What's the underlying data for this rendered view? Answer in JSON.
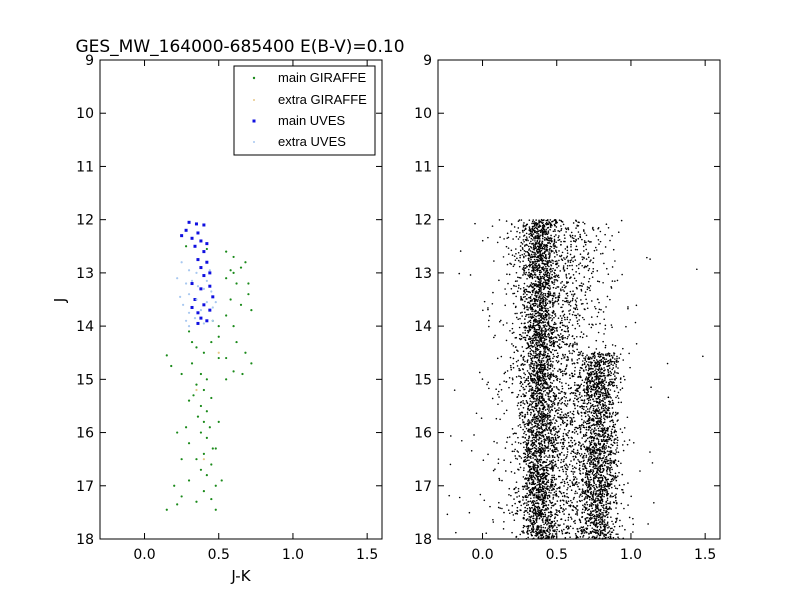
{
  "chart_data": [
    {
      "type": "scatter",
      "title": "GES_MW_164000-685400 E(B-V)=0.10",
      "xlabel": "J-K",
      "ylabel": "J",
      "xlim": [
        -0.3,
        1.6
      ],
      "ylim": [
        18,
        9
      ],
      "y_inverted": true,
      "x_ticks": [
        "0.0",
        "0.5",
        "1.0",
        "1.5"
      ],
      "y_ticks": [
        "9",
        "10",
        "11",
        "12",
        "13",
        "14",
        "15",
        "16",
        "17",
        "18"
      ],
      "legend_position": "top-right",
      "series": [
        {
          "name": "main GIRAFFE",
          "color": "#1a8a1a",
          "marker": "point",
          "points": [
            [
              0.28,
              12.5
            ],
            [
              0.42,
              12.55
            ],
            [
              0.55,
              12.6
            ],
            [
              0.6,
              12.7
            ],
            [
              0.68,
              12.8
            ],
            [
              0.6,
              13.0
            ],
            [
              0.55,
              13.1
            ],
            [
              0.62,
              13.2
            ],
            [
              0.7,
              13.4
            ],
            [
              0.58,
              13.5
            ],
            [
              0.65,
              13.6
            ],
            [
              0.72,
              13.7
            ],
            [
              0.55,
              13.8
            ],
            [
              0.6,
              14.0
            ],
            [
              0.5,
              14.2
            ],
            [
              0.62,
              14.3
            ],
            [
              0.68,
              14.5
            ],
            [
              0.55,
              14.6
            ],
            [
              0.72,
              14.7
            ],
            [
              0.6,
              14.85
            ],
            [
              0.66,
              14.9
            ],
            [
              0.15,
              14.55
            ],
            [
              0.18,
              14.75
            ],
            [
              0.5,
              14.6
            ],
            [
              0.45,
              14.3
            ],
            [
              0.3,
              14.1
            ],
            [
              0.35,
              14.4
            ],
            [
              0.4,
              14.5
            ],
            [
              0.32,
              14.7
            ],
            [
              0.38,
              14.9
            ],
            [
              0.42,
              15.0
            ],
            [
              0.35,
              15.1
            ],
            [
              0.4,
              15.2
            ],
            [
              0.33,
              15.3
            ],
            [
              0.45,
              15.35
            ],
            [
              0.38,
              15.5
            ],
            [
              0.42,
              15.6
            ],
            [
              0.36,
              15.7
            ],
            [
              0.4,
              15.8
            ],
            [
              0.44,
              15.9
            ],
            [
              0.38,
              16.0
            ],
            [
              0.42,
              16.1
            ],
            [
              0.3,
              16.2
            ],
            [
              0.46,
              16.3
            ],
            [
              0.4,
              16.4
            ],
            [
              0.35,
              16.5
            ],
            [
              0.45,
              16.6
            ],
            [
              0.38,
              16.7
            ],
            [
              0.42,
              16.8
            ],
            [
              0.3,
              16.9
            ],
            [
              0.48,
              17.0
            ],
            [
              0.4,
              17.1
            ],
            [
              0.25,
              17.2
            ],
            [
              0.45,
              17.25
            ],
            [
              0.35,
              17.3
            ],
            [
              0.15,
              17.45
            ],
            [
              0.22,
              17.35
            ],
            [
              0.48,
              17.45
            ],
            [
              0.2,
              17.0
            ],
            [
              0.25,
              16.5
            ],
            [
              0.22,
              16.0
            ],
            [
              0.5,
              15.8
            ],
            [
              0.48,
              16.3
            ],
            [
              0.52,
              16.9
            ],
            [
              0.28,
              15.9
            ],
            [
              0.3,
              15.4
            ],
            [
              0.55,
              15.0
            ],
            [
              0.25,
              14.9
            ],
            [
              0.32,
              14.3
            ],
            [
              0.5,
              14.0
            ],
            [
              0.46,
              13.9
            ],
            [
              0.65,
              12.9
            ],
            [
              0.58,
              12.95
            ],
            [
              0.7,
              13.2
            ]
          ]
        },
        {
          "name": "extra GIRAFFE",
          "color": "#e8c888",
          "marker": "point",
          "points": [
            [
              0.5,
              14.5
            ],
            [
              0.35,
              15.2
            ],
            [
              0.4,
              16.5
            ]
          ]
        },
        {
          "name": "main UVES",
          "color": "#1010e0",
          "marker": "square",
          "points": [
            [
              0.3,
              12.05
            ],
            [
              0.35,
              12.08
            ],
            [
              0.4,
              12.1
            ],
            [
              0.25,
              12.3
            ],
            [
              0.32,
              12.35
            ],
            [
              0.38,
              12.4
            ],
            [
              0.42,
              12.45
            ],
            [
              0.28,
              12.2
            ],
            [
              0.36,
              12.25
            ],
            [
              0.34,
              12.5
            ],
            [
              0.4,
              12.6
            ],
            [
              0.36,
              12.75
            ],
            [
              0.42,
              12.8
            ],
            [
              0.38,
              12.9
            ],
            [
              0.44,
              13.0
            ],
            [
              0.4,
              13.05
            ],
            [
              0.32,
              13.2
            ],
            [
              0.44,
              13.25
            ],
            [
              0.38,
              13.3
            ],
            [
              0.46,
              13.45
            ],
            [
              0.34,
              13.5
            ],
            [
              0.4,
              13.6
            ],
            [
              0.44,
              13.7
            ],
            [
              0.36,
              13.75
            ],
            [
              0.38,
              13.85
            ],
            [
              0.42,
              13.9
            ],
            [
              0.32,
              13.65
            ],
            [
              0.36,
              13.95
            ]
          ]
        },
        {
          "name": "extra UVES",
          "color": "#a8c8f0",
          "marker": "point",
          "points": [
            [
              0.25,
              12.8
            ],
            [
              0.3,
              12.95
            ],
            [
              0.35,
              13.0
            ],
            [
              0.22,
              13.1
            ],
            [
              0.28,
              13.2
            ],
            [
              0.4,
              13.3
            ],
            [
              0.45,
              13.35
            ],
            [
              0.3,
              13.4
            ],
            [
              0.35,
              13.5
            ],
            [
              0.42,
              13.55
            ],
            [
              0.26,
              13.6
            ],
            [
              0.46,
              13.65
            ],
            [
              0.3,
              13.75
            ],
            [
              0.34,
              13.85
            ],
            [
              0.4,
              13.95
            ],
            [
              0.46,
              13.9
            ],
            [
              0.28,
              13.9
            ],
            [
              0.44,
              12.95
            ],
            [
              0.32,
              13.15
            ],
            [
              0.38,
              13.7
            ],
            [
              0.3,
              14.0
            ],
            [
              0.24,
              13.45
            ],
            [
              0.48,
              13.55
            ],
            [
              0.36,
              13.25
            ],
            [
              0.42,
              13.15
            ]
          ]
        }
      ]
    },
    {
      "type": "scatter",
      "title": "",
      "xlabel": "",
      "ylabel": "",
      "xlim": [
        -0.3,
        1.6
      ],
      "ylim": [
        18,
        9
      ],
      "y_inverted": true,
      "x_ticks": [
        "0.0",
        "0.5",
        "1.0",
        "1.5"
      ],
      "y_ticks": [
        "9",
        "10",
        "11",
        "12",
        "13",
        "14",
        "15",
        "16",
        "17",
        "18"
      ],
      "series": [
        {
          "color": "#000000",
          "marker": "point",
          "distribution": [
            {
              "x_mean": 0.38,
              "x_sd": 0.06,
              "y_min": 12.0,
              "y_max": 18.0,
              "count": 2600
            },
            {
              "x_mean": 0.78,
              "x_sd": 0.07,
              "y_min": 14.5,
              "y_max": 18.0,
              "count": 1800
            },
            {
              "x_mean": 0.5,
              "x_sd": 0.17,
              "y_min": 12.0,
              "y_max": 18.0,
              "count": 2000
            },
            {
              "x_mean": 0.45,
              "x_sd": 0.35,
              "y_min": 12.0,
              "y_max": 18.0,
              "count": 260
            }
          ]
        }
      ]
    }
  ]
}
